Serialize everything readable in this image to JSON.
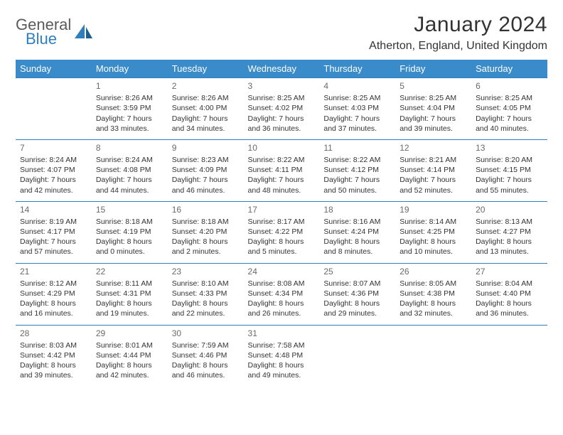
{
  "brand": {
    "word1": "General",
    "word2": "Blue"
  },
  "title": "January 2024",
  "location": "Atherton, England, United Kingdom",
  "colors": {
    "header_bg": "#3a8bc9",
    "rule": "#2f7fbf",
    "text": "#333333",
    "daynum": "#6a6a6a",
    "logo_gray": "#5a5a5a",
    "logo_blue": "#2f7fbf",
    "page_bg": "#ffffff"
  },
  "weekdays": [
    "Sunday",
    "Monday",
    "Tuesday",
    "Wednesday",
    "Thursday",
    "Friday",
    "Saturday"
  ],
  "weeks": [
    [
      null,
      {
        "n": "1",
        "sr": "8:26 AM",
        "ss": "3:59 PM",
        "d1": "Daylight: 7 hours",
        "d2": "and 33 minutes."
      },
      {
        "n": "2",
        "sr": "8:26 AM",
        "ss": "4:00 PM",
        "d1": "Daylight: 7 hours",
        "d2": "and 34 minutes."
      },
      {
        "n": "3",
        "sr": "8:25 AM",
        "ss": "4:02 PM",
        "d1": "Daylight: 7 hours",
        "d2": "and 36 minutes."
      },
      {
        "n": "4",
        "sr": "8:25 AM",
        "ss": "4:03 PM",
        "d1": "Daylight: 7 hours",
        "d2": "and 37 minutes."
      },
      {
        "n": "5",
        "sr": "8:25 AM",
        "ss": "4:04 PM",
        "d1": "Daylight: 7 hours",
        "d2": "and 39 minutes."
      },
      {
        "n": "6",
        "sr": "8:25 AM",
        "ss": "4:05 PM",
        "d1": "Daylight: 7 hours",
        "d2": "and 40 minutes."
      }
    ],
    [
      {
        "n": "7",
        "sr": "8:24 AM",
        "ss": "4:07 PM",
        "d1": "Daylight: 7 hours",
        "d2": "and 42 minutes."
      },
      {
        "n": "8",
        "sr": "8:24 AM",
        "ss": "4:08 PM",
        "d1": "Daylight: 7 hours",
        "d2": "and 44 minutes."
      },
      {
        "n": "9",
        "sr": "8:23 AM",
        "ss": "4:09 PM",
        "d1": "Daylight: 7 hours",
        "d2": "and 46 minutes."
      },
      {
        "n": "10",
        "sr": "8:22 AM",
        "ss": "4:11 PM",
        "d1": "Daylight: 7 hours",
        "d2": "and 48 minutes."
      },
      {
        "n": "11",
        "sr": "8:22 AM",
        "ss": "4:12 PM",
        "d1": "Daylight: 7 hours",
        "d2": "and 50 minutes."
      },
      {
        "n": "12",
        "sr": "8:21 AM",
        "ss": "4:14 PM",
        "d1": "Daylight: 7 hours",
        "d2": "and 52 minutes."
      },
      {
        "n": "13",
        "sr": "8:20 AM",
        "ss": "4:15 PM",
        "d1": "Daylight: 7 hours",
        "d2": "and 55 minutes."
      }
    ],
    [
      {
        "n": "14",
        "sr": "8:19 AM",
        "ss": "4:17 PM",
        "d1": "Daylight: 7 hours",
        "d2": "and 57 minutes."
      },
      {
        "n": "15",
        "sr": "8:18 AM",
        "ss": "4:19 PM",
        "d1": "Daylight: 8 hours",
        "d2": "and 0 minutes."
      },
      {
        "n": "16",
        "sr": "8:18 AM",
        "ss": "4:20 PM",
        "d1": "Daylight: 8 hours",
        "d2": "and 2 minutes."
      },
      {
        "n": "17",
        "sr": "8:17 AM",
        "ss": "4:22 PM",
        "d1": "Daylight: 8 hours",
        "d2": "and 5 minutes."
      },
      {
        "n": "18",
        "sr": "8:16 AM",
        "ss": "4:24 PM",
        "d1": "Daylight: 8 hours",
        "d2": "and 8 minutes."
      },
      {
        "n": "19",
        "sr": "8:14 AM",
        "ss": "4:25 PM",
        "d1": "Daylight: 8 hours",
        "d2": "and 10 minutes."
      },
      {
        "n": "20",
        "sr": "8:13 AM",
        "ss": "4:27 PM",
        "d1": "Daylight: 8 hours",
        "d2": "and 13 minutes."
      }
    ],
    [
      {
        "n": "21",
        "sr": "8:12 AM",
        "ss": "4:29 PM",
        "d1": "Daylight: 8 hours",
        "d2": "and 16 minutes."
      },
      {
        "n": "22",
        "sr": "8:11 AM",
        "ss": "4:31 PM",
        "d1": "Daylight: 8 hours",
        "d2": "and 19 minutes."
      },
      {
        "n": "23",
        "sr": "8:10 AM",
        "ss": "4:33 PM",
        "d1": "Daylight: 8 hours",
        "d2": "and 22 minutes."
      },
      {
        "n": "24",
        "sr": "8:08 AM",
        "ss": "4:34 PM",
        "d1": "Daylight: 8 hours",
        "d2": "and 26 minutes."
      },
      {
        "n": "25",
        "sr": "8:07 AM",
        "ss": "4:36 PM",
        "d1": "Daylight: 8 hours",
        "d2": "and 29 minutes."
      },
      {
        "n": "26",
        "sr": "8:05 AM",
        "ss": "4:38 PM",
        "d1": "Daylight: 8 hours",
        "d2": "and 32 minutes."
      },
      {
        "n": "27",
        "sr": "8:04 AM",
        "ss": "4:40 PM",
        "d1": "Daylight: 8 hours",
        "d2": "and 36 minutes."
      }
    ],
    [
      {
        "n": "28",
        "sr": "8:03 AM",
        "ss": "4:42 PM",
        "d1": "Daylight: 8 hours",
        "d2": "and 39 minutes."
      },
      {
        "n": "29",
        "sr": "8:01 AM",
        "ss": "4:44 PM",
        "d1": "Daylight: 8 hours",
        "d2": "and 42 minutes."
      },
      {
        "n": "30",
        "sr": "7:59 AM",
        "ss": "4:46 PM",
        "d1": "Daylight: 8 hours",
        "d2": "and 46 minutes."
      },
      {
        "n": "31",
        "sr": "7:58 AM",
        "ss": "4:48 PM",
        "d1": "Daylight: 8 hours",
        "d2": "and 49 minutes."
      },
      null,
      null,
      null
    ]
  ],
  "labels": {
    "sunrise_prefix": "Sunrise: ",
    "sunset_prefix": "Sunset: "
  },
  "table_style": {
    "header_fontsize": 13,
    "cell_fontsize": 10.5,
    "daynum_fontsize": 12,
    "row_border_width": 1.5
  }
}
